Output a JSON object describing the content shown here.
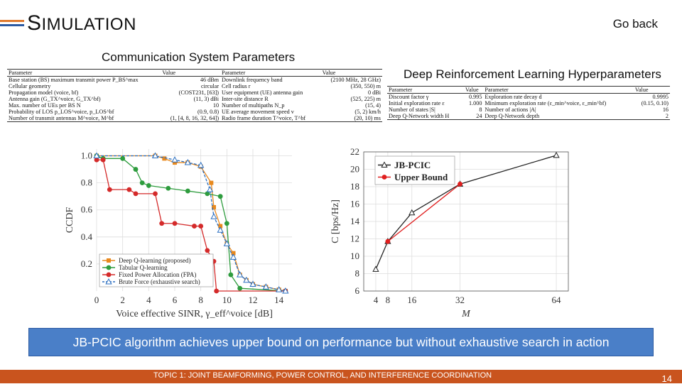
{
  "slide": {
    "title_first": "S",
    "title_rest": "IMULATION",
    "go_back": "Go back",
    "comm_title": "Communication System Parameters",
    "drl_title": "Deep Reinforcement Learning Hyperparameters",
    "banner": "JB-PCIC algorithm achieves upper bound on performance but without exhaustive search in action",
    "footer_topic": "TOPIC 1: JOINT BEAMFORMING, POWER CONTROL, AND INTERFERENCE COORDINATION",
    "page_number": "14"
  },
  "colors": {
    "accent": "#e07a2e",
    "footer": "#c9541e",
    "banner": "#4a7fc8"
  },
  "comm_table": {
    "headers": [
      "Parameter",
      "Value",
      "Parameter",
      "Value"
    ],
    "rows": [
      [
        "Base station (BS) maximum transmit power P_BS^max",
        "46 dBm",
        "Downlink frequency band",
        "(2100 MHz, 28 GHz)"
      ],
      [
        "Cellular geometry",
        "circular",
        "Cell radius r",
        "(350, 550) m"
      ],
      [
        "Propagation model (voice, bf)",
        "(COST231, [63])",
        "User equipment (UE) antenna gain",
        "0 dBi"
      ],
      [
        "Antenna gain (G_TX^voice, G_TX^bf)",
        "(11, 3) dBi",
        "Inter-site distance R",
        "(525, 225) m"
      ],
      [
        "Max. number of UEs per BS N",
        "10",
        "Number of multipaths N_p",
        "(15, 4)"
      ],
      [
        "Probability of LOS p_LOS^voice, p_LOS^bf",
        "(0.9, 0.8)",
        "UE average movement speed v",
        "(5, 2) km/h"
      ],
      [
        "Number of transmit antennas M^voice, M^bf",
        "(1, [4, 8, 16, 32, 64])",
        "Radio frame duration T^voice, T^bf",
        "(20, 10) ms"
      ]
    ]
  },
  "drl_table": {
    "headers": [
      "Parameter",
      "Value",
      "Parameter",
      "Value"
    ],
    "rows": [
      [
        "Discount factor γ",
        "0.995",
        "Exploration rate decay d",
        "0.9995"
      ],
      [
        "Initial exploration rate ε",
        "1.000",
        "Minimum exploration rate (ε_min^voice, ε_min^bf)",
        "(0.15, 0.10)"
      ],
      [
        "Number of states |S|",
        "8",
        "Number of actions |A|",
        "16"
      ],
      [
        "Deep Q-Network width H",
        "24",
        "Deep Q-Network depth",
        "2"
      ]
    ]
  },
  "chart_data": [
    {
      "type": "line",
      "xlabel": "Voice effective SINR, γ_eff^voice [dB]",
      "ylabel": "CCDF",
      "xlim": [
        0,
        15
      ],
      "ylim": [
        0,
        1.05
      ],
      "xticks": [
        0,
        2,
        4,
        6,
        8,
        10,
        12,
        14
      ],
      "yticks": [
        0.2,
        0.4,
        0.6,
        0.8,
        1.0
      ],
      "xtick_labels": [
        "0",
        "2",
        "4",
        "6",
        "8",
        "10",
        "12",
        "14"
      ],
      "ytick_labels": [
        "0.2",
        "0.4",
        "0.6",
        "0.8",
        "1.0"
      ],
      "grid": true,
      "legend": "bottom-left",
      "series": [
        {
          "name": "Deep Q-learning (proposed)",
          "color": "#e8891e",
          "marker": "square",
          "x": [
            0,
            4.5,
            5.2,
            6.0,
            7.0,
            8.0,
            8.8,
            9.0,
            9.5,
            10.0,
            10.5,
            11.0,
            11.5,
            12.0,
            13.0,
            14.0,
            14.5
          ],
          "y": [
            1.0,
            1.0,
            0.98,
            0.95,
            0.95,
            0.92,
            0.8,
            0.62,
            0.48,
            0.35,
            0.28,
            0.12,
            0.08,
            0.05,
            0.03,
            0.01,
            0.0
          ]
        },
        {
          "name": "Tabular Q-learning",
          "color": "#2e9c3e",
          "marker": "circle",
          "x": [
            0,
            0.5,
            2.0,
            3.0,
            3.5,
            4.0,
            5.5,
            7.0,
            8.5,
            9.5,
            10.0,
            10.3,
            11.0,
            14.5
          ],
          "y": [
            1.0,
            0.98,
            0.98,
            0.9,
            0.8,
            0.78,
            0.76,
            0.74,
            0.72,
            0.7,
            0.5,
            0.12,
            0.02,
            0.0
          ]
        },
        {
          "name": "Fixed Power Allocation (FPA)",
          "color": "#d42a2a",
          "marker": "circle",
          "x": [
            0,
            0.5,
            1.0,
            2.5,
            3.0,
            4.5,
            5.0,
            6.0,
            7.5,
            8.0,
            8.5,
            9.0,
            9.2,
            14.5
          ],
          "y": [
            0.97,
            0.97,
            0.75,
            0.75,
            0.72,
            0.72,
            0.5,
            0.5,
            0.48,
            0.48,
            0.3,
            0.22,
            0.0,
            0.0
          ]
        },
        {
          "name": "Brute Force (exhaustive search)",
          "color": "#2b6fc0",
          "marker": "triangle",
          "dashed": true,
          "x": [
            0,
            4.5,
            6.0,
            7.0,
            8.0,
            8.7,
            9.0,
            9.5,
            10.0,
            10.5,
            11.0,
            11.5,
            12.0,
            13.0,
            14.0,
            14.5
          ],
          "y": [
            1.0,
            1.0,
            0.97,
            0.95,
            0.93,
            0.75,
            0.55,
            0.45,
            0.35,
            0.25,
            0.12,
            0.08,
            0.05,
            0.03,
            0.01,
            0.0
          ]
        }
      ]
    },
    {
      "type": "line",
      "xlabel": "M",
      "ylabel": "C [bps/Hz]",
      "xlim": [
        0,
        68
      ],
      "ylim": [
        6,
        22
      ],
      "xticks": [
        4,
        8,
        16,
        32,
        64
      ],
      "yticks": [
        6,
        8,
        10,
        12,
        14,
        16,
        18,
        20,
        22
      ],
      "xtick_labels": [
        "4",
        "8",
        "16",
        "32",
        "64"
      ],
      "ytick_labels": [
        "6",
        "8",
        "10",
        "12",
        "14",
        "16",
        "18",
        "20",
        "22"
      ],
      "grid": true,
      "legend": "top-left",
      "series": [
        {
          "name": "JB-PCIC",
          "color": "#222222",
          "marker": "triangle",
          "x": [
            4,
            8,
            16,
            32,
            64
          ],
          "y": [
            8.5,
            11.7,
            15.0,
            18.3,
            21.6
          ]
        },
        {
          "name": "Upper Bound",
          "color": "#e01e1e",
          "marker": "circle",
          "x": [
            8,
            32
          ],
          "y": [
            11.7,
            18.3
          ]
        }
      ]
    }
  ]
}
